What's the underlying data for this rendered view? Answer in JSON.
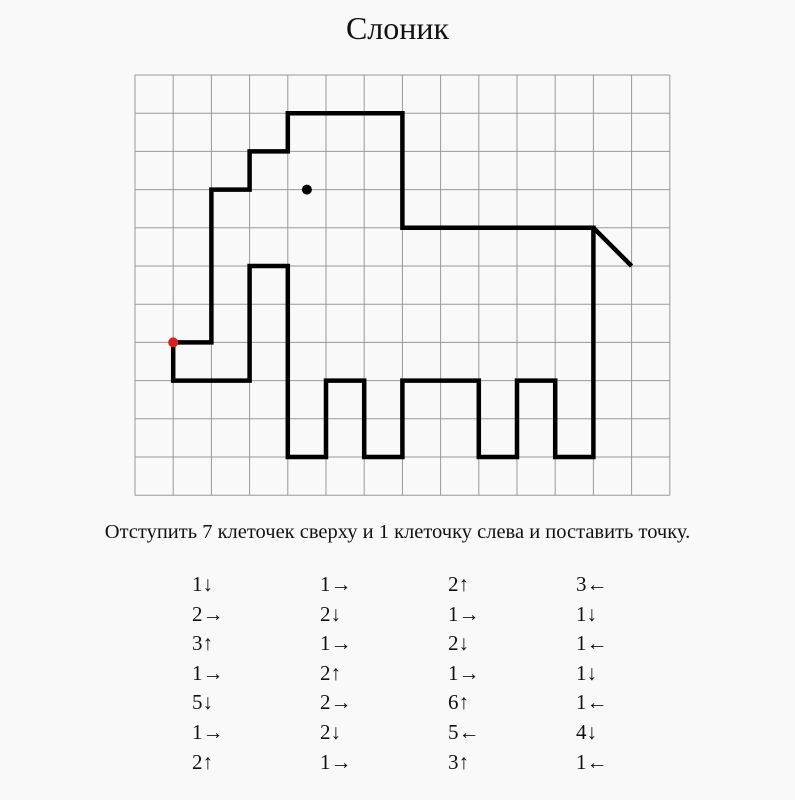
{
  "title": "Слоник",
  "instruction": "Отступить 7 клеточек сверху и 1 клеточку слева и поставить точку.",
  "grid": {
    "columns": 14,
    "rows": 11,
    "start_from_top": 7,
    "start_from_left": 1
  },
  "colors": {
    "line": "#000000",
    "grid": "#999999",
    "start_dot": "#d42020"
  },
  "step_columns": [
    [
      "1↓",
      "2→",
      "3↑",
      "1→",
      "5↓",
      "1→",
      "2↑"
    ],
    [
      "1→",
      "2↓",
      "1→",
      "2↑",
      "2→",
      "2↓",
      "1→"
    ],
    [
      "2↑",
      "1→",
      "2↓",
      "1→",
      "6↑",
      "5←",
      "3↑"
    ],
    [
      "3←",
      "1↓",
      "1←",
      "1↓",
      "1←",
      "4↓",
      "1←"
    ]
  ]
}
